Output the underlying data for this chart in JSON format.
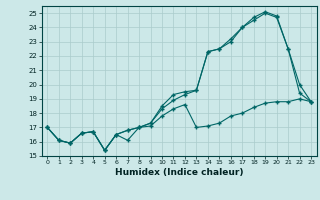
{
  "xlabel": "Humidex (Indice chaleur)",
  "bg_color": "#cce8e8",
  "line_color": "#006666",
  "grid_color": "#aacccc",
  "xlim": [
    -0.5,
    23.5
  ],
  "ylim": [
    15,
    25.5
  ],
  "yticks": [
    15,
    16,
    17,
    18,
    19,
    20,
    21,
    22,
    23,
    24,
    25
  ],
  "xticks": [
    0,
    1,
    2,
    3,
    4,
    5,
    6,
    7,
    8,
    9,
    10,
    11,
    12,
    13,
    14,
    15,
    16,
    17,
    18,
    19,
    20,
    21,
    22,
    23
  ],
  "line1_y": [
    17.0,
    16.1,
    15.9,
    16.6,
    16.7,
    15.4,
    16.5,
    16.1,
    17.0,
    17.1,
    17.8,
    18.3,
    18.6,
    17.0,
    17.1,
    17.3,
    17.8,
    18.0,
    18.4,
    18.7,
    18.8,
    18.8,
    19.0,
    18.8
  ],
  "line2_y": [
    17.0,
    16.1,
    15.9,
    16.6,
    16.7,
    15.4,
    16.5,
    16.8,
    17.0,
    17.3,
    18.5,
    19.3,
    19.5,
    19.6,
    22.3,
    22.5,
    23.2,
    24.0,
    24.7,
    25.1,
    24.8,
    22.5,
    19.4,
    18.8
  ],
  "line3_y": [
    17.0,
    16.1,
    15.9,
    16.6,
    16.7,
    15.4,
    16.5,
    16.8,
    17.0,
    17.3,
    18.3,
    18.9,
    19.3,
    19.6,
    22.3,
    22.5,
    23.0,
    24.0,
    24.5,
    25.0,
    24.7,
    22.5,
    20.0,
    18.8
  ]
}
